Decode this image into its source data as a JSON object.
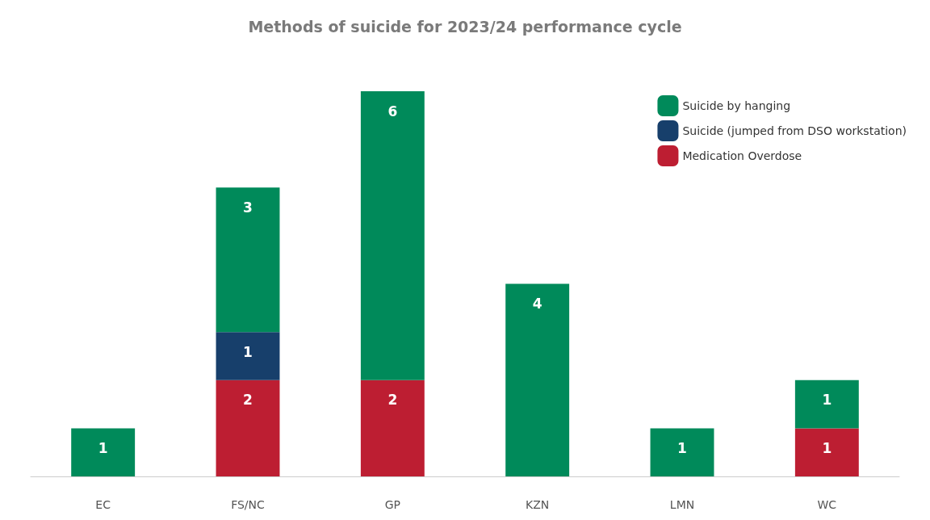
{
  "chart_data": {
    "type": "bar",
    "title": "Methods of suicide for 2023/24 performance cycle",
    "categories": [
      "EC",
      "FS/NC",
      "GP",
      "KZN",
      "LMN",
      "WC"
    ],
    "stacked": true,
    "data_labels": true,
    "legend": "top right",
    "series": [
      {
        "name": "Medication Overdose",
        "color": "#bd1e32",
        "values": [
          null,
          2,
          2,
          null,
          null,
          1
        ]
      },
      {
        "name": "Suicide (jumped from DSO workstation)",
        "color": "#173f6b",
        "values": [
          null,
          1,
          null,
          null,
          null,
          null
        ]
      },
      {
        "name": "Suicide by hanging",
        "color": "#008a5a",
        "values": [
          1,
          3,
          6,
          4,
          1,
          1
        ]
      }
    ]
  }
}
